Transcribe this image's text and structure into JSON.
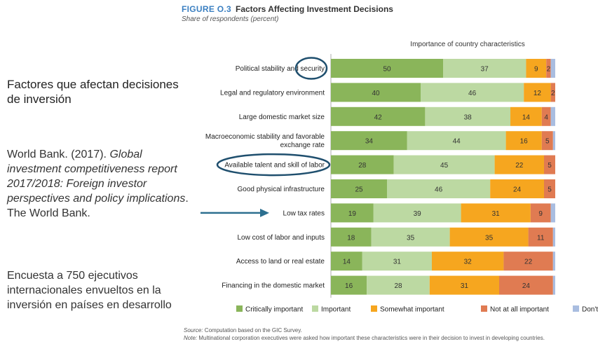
{
  "left_panel": {
    "title": "Factores que afectan decisiones de inversión",
    "reference": {
      "author": "World Bank. (2017). ",
      "title_italic": "Global investment competitiveness report 2017/2018: Foreign investor perspectives and policy implications",
      "publisher": ". The World Bank."
    },
    "note": "Encuesta a 750 ejecutivos internacionales envueltos en la inversión en países en desarrollo"
  },
  "figure": {
    "label": "FIGURE O.3",
    "title": "Factors Affecting Investment Decisions",
    "subtitle": "Share of respondents (percent)",
    "source_prefix": "Source:",
    "source_text": " Computation based on the GIC Survey.",
    "note_prefix": "Note:",
    "note_text": " Multinational corporation executives were asked how important these characteristics were in their decision to invest in developing countries."
  },
  "chart_data": {
    "type": "bar",
    "orientation": "horizontal",
    "stacked": true,
    "header": "Importance of country characteristics",
    "categories": [
      "Political stability and security",
      "Legal and regulatory environment",
      "Large domestic market size",
      "Macroeconomic stability and favorable exchange rate",
      "Available talent and skill of labor",
      "Good physical infrastructure",
      "Low tax rates",
      "Low cost of labor and inputs",
      "Access to land or real estate",
      "Financing in the domestic market"
    ],
    "category_lines": [
      [
        "Political stability and security"
      ],
      [
        "Legal and regulatory environment"
      ],
      [
        "Large domestic market size"
      ],
      [
        "Macroeconomic stability and favorable",
        "exchange rate"
      ],
      [
        "Available talent and skill of labor"
      ],
      [
        "Good physical infrastructure"
      ],
      [
        "Low tax rates"
      ],
      [
        "Low cost of labor and inputs"
      ],
      [
        "Access to land or real estate"
      ],
      [
        "Financing in the domestic market"
      ]
    ],
    "series": [
      {
        "name": "Critically important",
        "color": "#8ab55a",
        "values": [
          50,
          40,
          42,
          34,
          28,
          25,
          19,
          18,
          14,
          16
        ]
      },
      {
        "name": "Important",
        "color": "#bcd9a2",
        "values": [
          37,
          46,
          38,
          44,
          45,
          46,
          39,
          35,
          31,
          28
        ]
      },
      {
        "name": "Somewhat important",
        "color": "#f6a61f",
        "values": [
          9,
          12,
          14,
          16,
          22,
          24,
          31,
          35,
          32,
          31
        ]
      },
      {
        "name": "Not at all important",
        "color": "#e07b52",
        "values": [
          2,
          2,
          4,
          5,
          5,
          5,
          9,
          11,
          22,
          24
        ]
      },
      {
        "name": "Don't know",
        "color": "#a9bde0",
        "values": [
          2,
          0,
          2,
          1,
          0,
          0,
          2,
          1,
          1,
          1
        ]
      }
    ],
    "circled_categories": [
      "Political stability and security",
      "Available talent and skill of labor"
    ],
    "arrow_category": "Low tax rates",
    "outline_color": "#1f4f6e",
    "xlim": [
      0,
      100
    ],
    "legend_position": "bottom"
  }
}
